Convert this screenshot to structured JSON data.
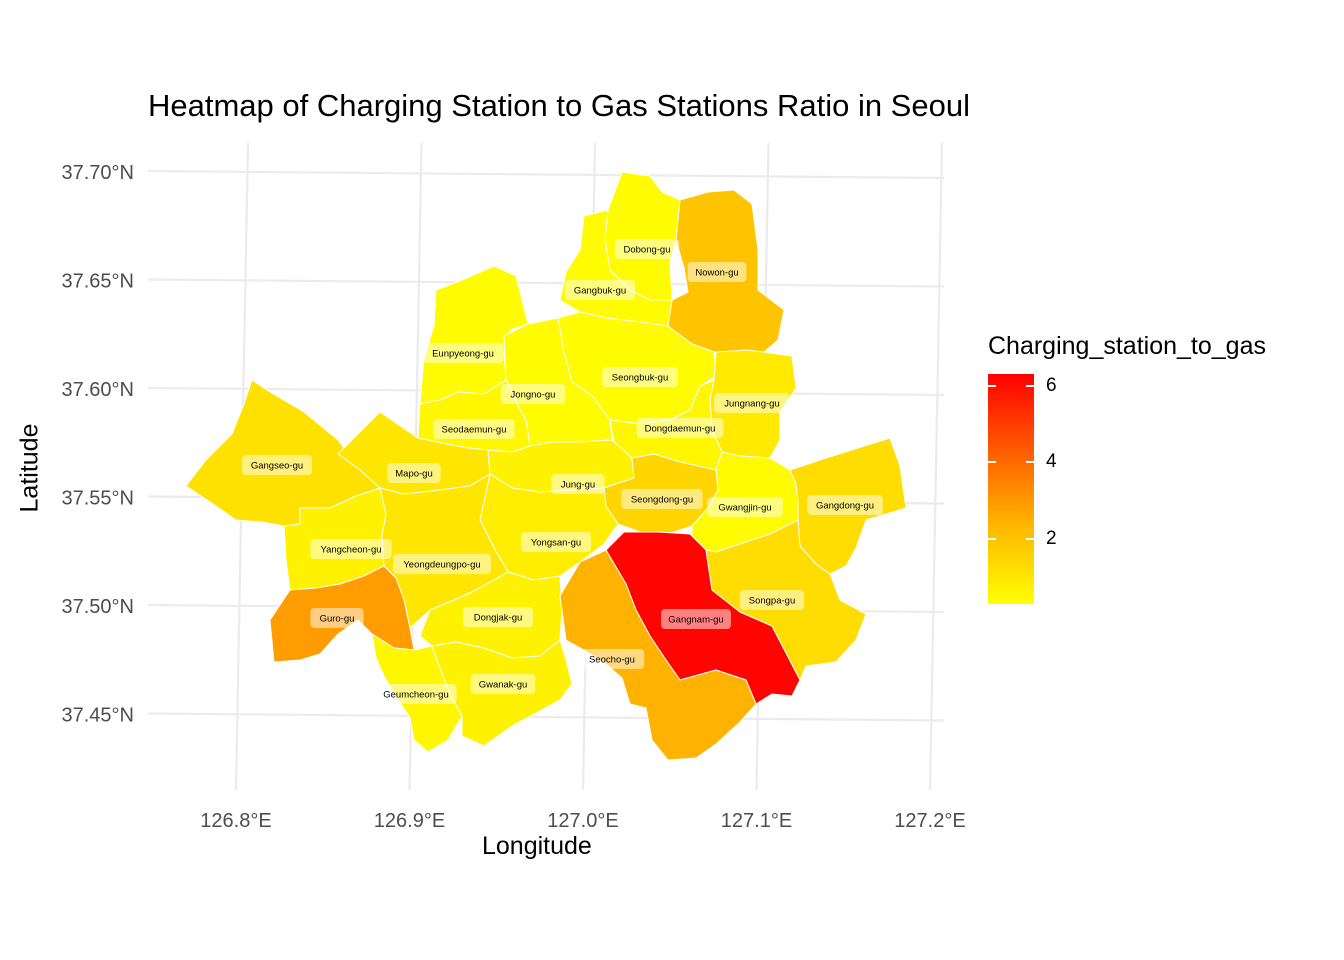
{
  "title": "Heatmap of Charging Station to Gas Stations Ratio in Seoul",
  "x_axis": {
    "title": "Longitude",
    "ticks": [
      {
        "value": 126.8,
        "label": "126.8°E"
      },
      {
        "value": 126.9,
        "label": "126.9°E"
      },
      {
        "value": 127.0,
        "label": "127.0°E"
      },
      {
        "value": 127.1,
        "label": "127.1°E"
      },
      {
        "value": 127.2,
        "label": "127.2°E"
      }
    ]
  },
  "y_axis": {
    "title": "Latitude",
    "ticks": [
      {
        "value": 37.7,
        "label": "37.70°N"
      },
      {
        "value": 37.65,
        "label": "37.65°N"
      },
      {
        "value": 37.6,
        "label": "37.60°N"
      },
      {
        "value": 37.55,
        "label": "37.55°N"
      },
      {
        "value": 37.5,
        "label": "37.50°N"
      },
      {
        "value": 37.45,
        "label": "37.45°N"
      }
    ]
  },
  "legend": {
    "title": "Charging_station_to_gas",
    "min": 0.3,
    "max": 6.3,
    "low_color": "#FFFF00",
    "high_color": "#FF0000",
    "ticks": [
      {
        "value": 2,
        "label": "2"
      },
      {
        "value": 4,
        "label": "4"
      },
      {
        "value": 6,
        "label": "6"
      }
    ]
  },
  "chart_data": {
    "type": "heatmap",
    "title": "Heatmap of Charging Station to Gas Stations Ratio in Seoul",
    "xlabel": "Longitude",
    "ylabel": "Latitude",
    "xlim": [
      126.76,
      127.22
    ],
    "ylim": [
      37.42,
      37.715
    ],
    "grid": true,
    "legend_position": "right",
    "districts": [
      {
        "name": "Dobong-gu",
        "value": 0.4
      },
      {
        "name": "Nowon-gu",
        "value": 1.7
      },
      {
        "name": "Gangbuk-gu",
        "value": 0.4
      },
      {
        "name": "Eunpyeong-gu",
        "value": 0.4
      },
      {
        "name": "Seongbuk-gu",
        "value": 0.4
      },
      {
        "name": "Jongno-gu",
        "value": 0.4
      },
      {
        "name": "Jungnang-gu",
        "value": 0.8
      },
      {
        "name": "Seodaemun-gu",
        "value": 0.5
      },
      {
        "name": "Dongdaemun-gu",
        "value": 0.5
      },
      {
        "name": "Gangseo-gu",
        "value": 1.0
      },
      {
        "name": "Mapo-gu",
        "value": 0.9
      },
      {
        "name": "Jung-gu",
        "value": 0.6
      },
      {
        "name": "Seongdong-gu",
        "value": 1.3
      },
      {
        "name": "Gwangjin-gu",
        "value": 0.4
      },
      {
        "name": "Gangdong-gu",
        "value": 1.1
      },
      {
        "name": "Yangcheon-gu",
        "value": 0.6
      },
      {
        "name": "Yongsan-gu",
        "value": 0.7
      },
      {
        "name": "Yeongdeungpo-gu",
        "value": 0.9
      },
      {
        "name": "Guro-gu",
        "value": 2.6
      },
      {
        "name": "Dongjak-gu",
        "value": 0.6
      },
      {
        "name": "Gangnam-gu",
        "value": 6.2
      },
      {
        "name": "Songpa-gu",
        "value": 1.1
      },
      {
        "name": "Seocho-gu",
        "value": 2.1
      },
      {
        "name": "Geumcheon-gu",
        "value": 0.5
      },
      {
        "name": "Gwanak-gu",
        "value": 0.6
      }
    ]
  }
}
